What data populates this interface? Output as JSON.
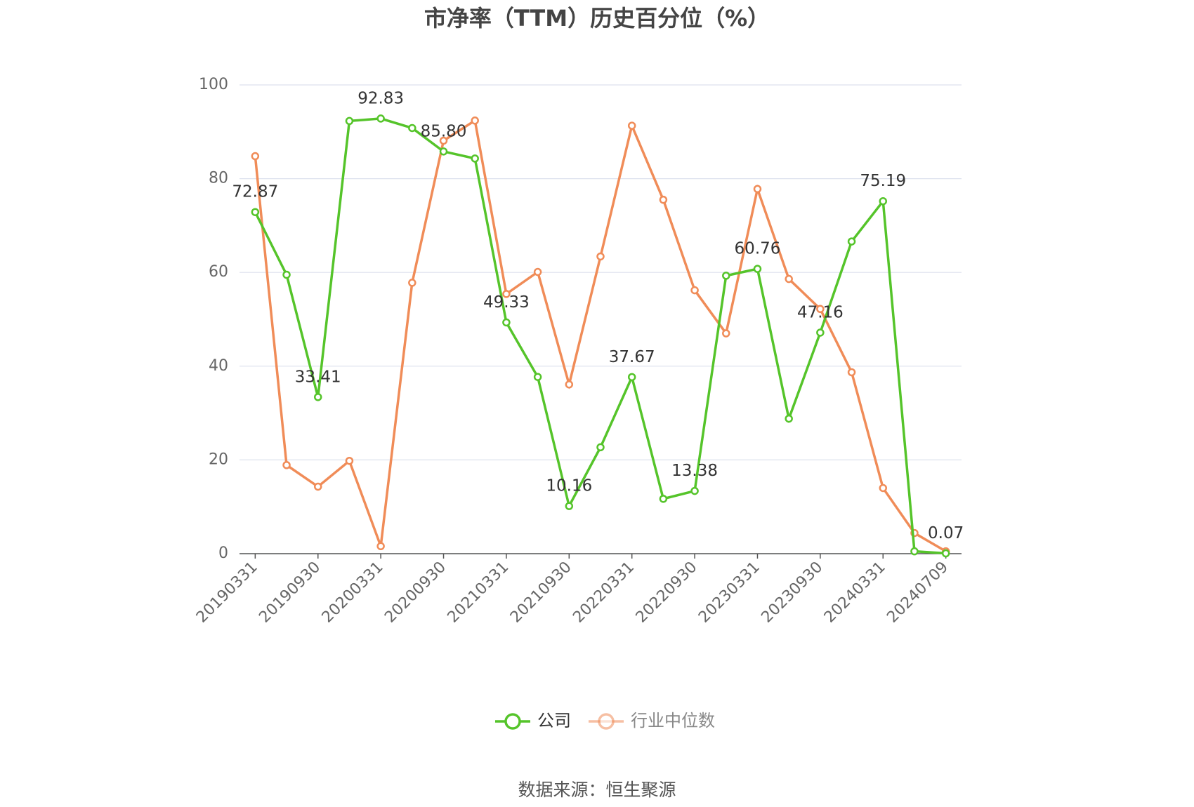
{
  "chart_data": {
    "type": "line",
    "title": "市净率（TTM）历史百分位（%）",
    "source": "数据来源：恒生聚源",
    "categories": [
      "20190331",
      null,
      "20190930",
      null,
      "20200331",
      null,
      "20200930",
      null,
      "20210331",
      null,
      "20210930",
      null,
      "20220331",
      null,
      "20220930",
      null,
      "20230331",
      null,
      "20230930",
      null,
      "20240331",
      null,
      "20240709"
    ],
    "series": [
      {
        "name": "公司",
        "color": "#55c42a",
        "values": [
          72.87,
          59.5,
          33.41,
          92.3,
          92.83,
          90.8,
          85.8,
          84.3,
          49.33,
          37.7,
          10.16,
          22.7,
          37.67,
          11.7,
          13.38,
          59.3,
          60.76,
          28.8,
          47.16,
          66.6,
          75.19,
          0.5,
          0.07
        ],
        "value_labels": [
          "72.87",
          null,
          "33.41",
          null,
          "92.83",
          null,
          "85.80",
          null,
          "49.33",
          null,
          "10.16",
          null,
          "37.67",
          null,
          "13.38",
          null,
          "60.76",
          null,
          "47.16",
          null,
          "75.19",
          null,
          "0.07"
        ]
      },
      {
        "name": "行业中位数",
        "color": "#f08c58",
        "values": [
          84.8,
          18.9,
          14.3,
          19.8,
          1.6,
          57.8,
          88.1,
          92.4,
          55.4,
          60.1,
          36.1,
          63.4,
          91.3,
          75.5,
          56.2,
          47.0,
          77.8,
          58.6,
          52.2,
          38.7,
          14.0,
          4.4,
          0.5
        ]
      }
    ],
    "ylim": [
      0,
      100
    ],
    "yticks": [
      0,
      20,
      40,
      60,
      80,
      100
    ],
    "grid": true
  }
}
